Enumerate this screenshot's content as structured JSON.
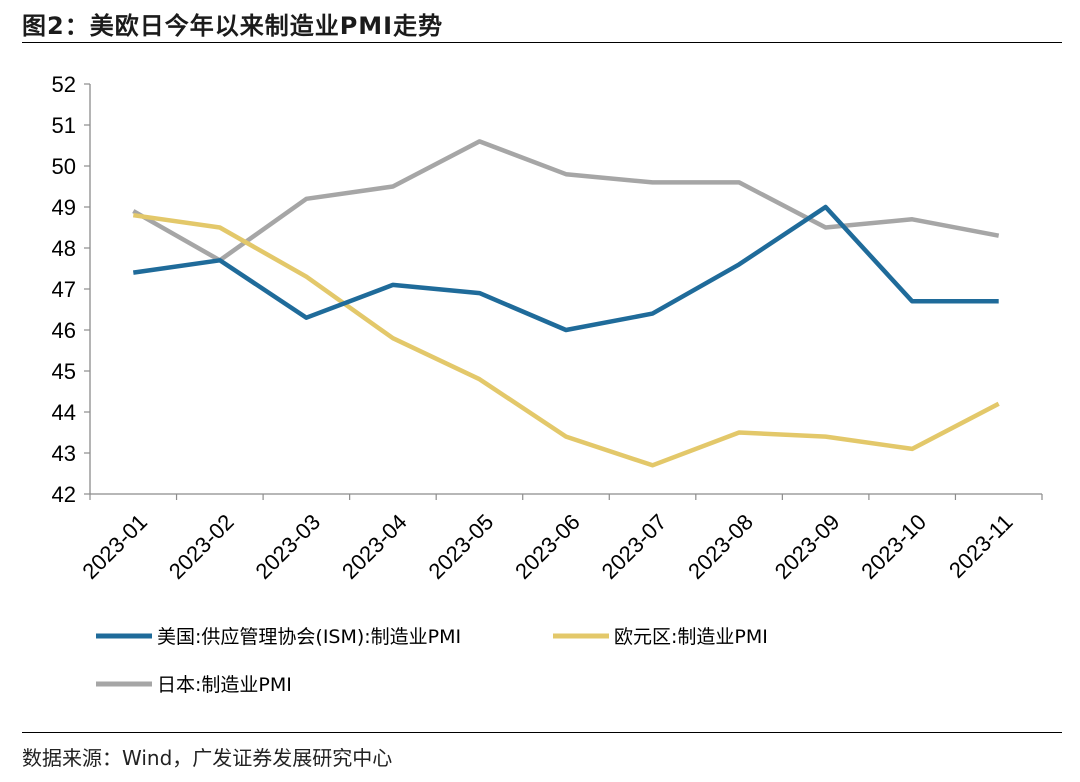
{
  "header": {
    "title": "图2：美欧日今年以来制造业PMI走势"
  },
  "footer": {
    "source": "数据来源：Wind，广发证券发展研究中心"
  },
  "colors": {
    "us": "#1f6b9a",
    "eu": "#e3c86a",
    "jp": "#a6a6a6",
    "axis": "#8c8c8c"
  },
  "chart_data": {
    "type": "line",
    "title": "美欧日今年以来制造业PMI走势",
    "categories": [
      "2023-01",
      "2023-02",
      "2023-03",
      "2023-04",
      "2023-05",
      "2023-06",
      "2023-07",
      "2023-08",
      "2023-09",
      "2023-10",
      "2023-11"
    ],
    "yticks": [
      "42",
      "43",
      "44",
      "45",
      "46",
      "47",
      "48",
      "49",
      "50",
      "51",
      "52"
    ],
    "ylim": [
      42,
      52
    ],
    "grid": false,
    "legend_position": "bottom",
    "series": [
      {
        "name": "美国:供应管理协会(ISM):制造业PMI",
        "color": "#1f6b9a",
        "values": [
          47.4,
          47.7,
          46.3,
          47.1,
          46.9,
          46.0,
          46.4,
          47.6,
          49.0,
          46.7,
          46.7
        ]
      },
      {
        "name": "欧元区:制造业PMI",
        "color": "#e3c86a",
        "values": [
          48.8,
          48.5,
          47.3,
          45.8,
          44.8,
          43.4,
          42.7,
          43.5,
          43.4,
          43.1,
          44.2
        ]
      },
      {
        "name": "日本:制造业PMI",
        "color": "#a6a6a6",
        "values": [
          48.9,
          47.7,
          49.2,
          49.5,
          50.6,
          49.8,
          49.6,
          49.6,
          48.5,
          48.7,
          48.3
        ]
      }
    ]
  }
}
